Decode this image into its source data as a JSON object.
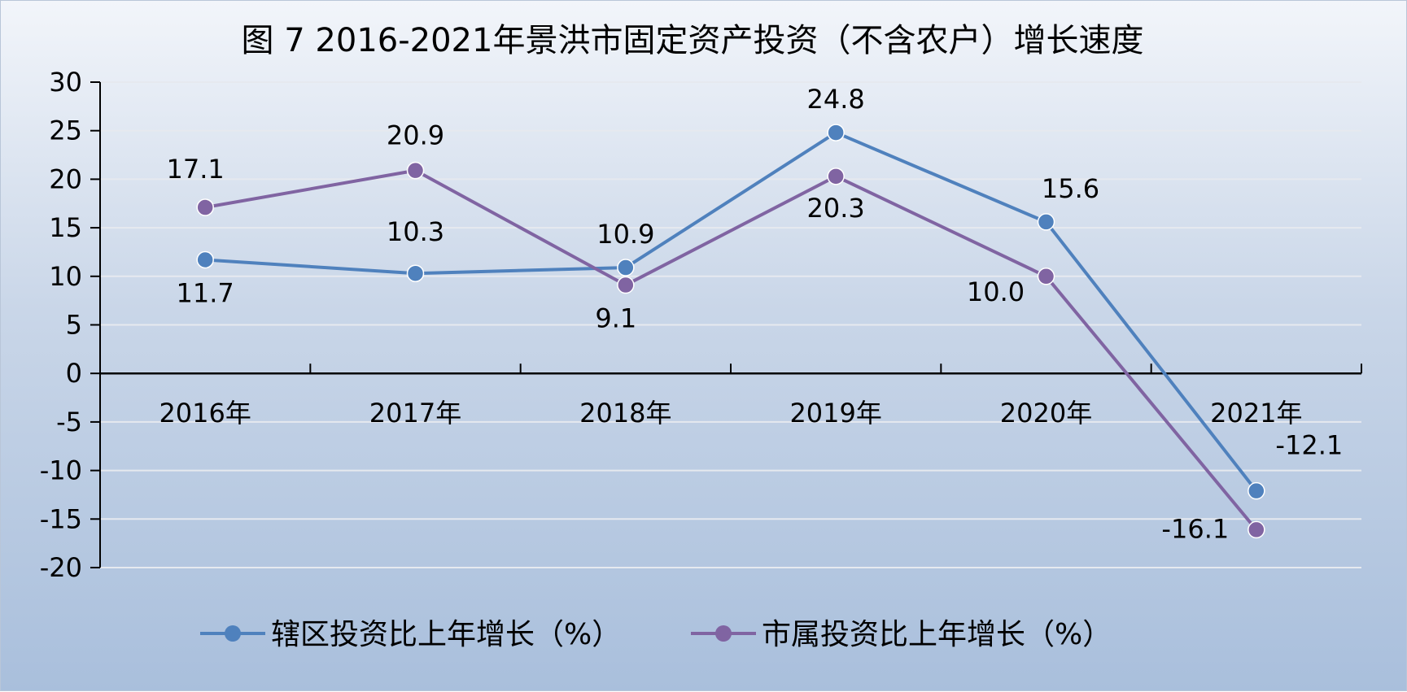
{
  "chart_data": {
    "type": "line",
    "title": "图 7  2016-2021年景洪市固定资产投资（不含农户）增长速度",
    "xlabel": "",
    "ylabel": "",
    "categories": [
      "2016年",
      "2017年",
      "2018年",
      "2019年",
      "2020年",
      "2021年"
    ],
    "ylim": [
      -20,
      30
    ],
    "yticks": [
      30,
      25,
      20,
      15,
      10,
      5,
      0,
      -5,
      -10,
      -15,
      -20
    ],
    "grid": true,
    "legend_position": "bottom",
    "series": [
      {
        "name": "辖区投资比上年增长（%）",
        "values": [
          11.7,
          10.3,
          10.9,
          24.8,
          15.6,
          -12.1
        ],
        "labels": [
          "11.7",
          "10.3",
          "10.9",
          "24.8",
          "15.6",
          "-12.1"
        ],
        "color": "#4f81bd"
      },
      {
        "name": "市属投资比上年增长（%）",
        "values": [
          17.1,
          20.9,
          9.1,
          20.3,
          10.0,
          -16.1
        ],
        "labels": [
          "17.1",
          "20.9",
          "9.1",
          "20.3",
          "10.0",
          "-16.1"
        ],
        "color": "#8064a2"
      }
    ]
  }
}
